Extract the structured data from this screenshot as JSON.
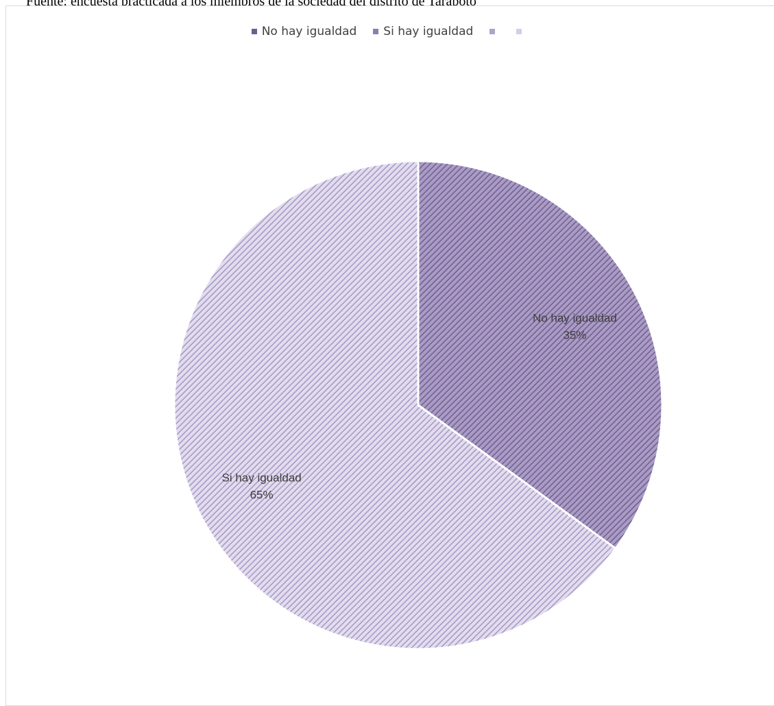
{
  "source_note": "Fuente: encuesta practicada a los miembros de la sociedad del distrito de Tarapoto",
  "chart_data": {
    "type": "pie",
    "categories": [
      "No hay igualdad",
      "Si hay igualdad"
    ],
    "values": [
      35,
      65
    ],
    "value_labels": [
      "35%",
      "65%"
    ],
    "legend": {
      "position": "top",
      "entries": [
        "No hay igualdad",
        "Si hay igualdad",
        "",
        ""
      ]
    },
    "colors": {
      "slice_1_base": "#8a7aa8",
      "slice_2_base": "#c6bcd9",
      "legend_1": "#6e5c8e",
      "legend_2": "#8e7cb0",
      "legend_3": "#b0a3c9",
      "legend_4": "#d4cde3"
    }
  }
}
